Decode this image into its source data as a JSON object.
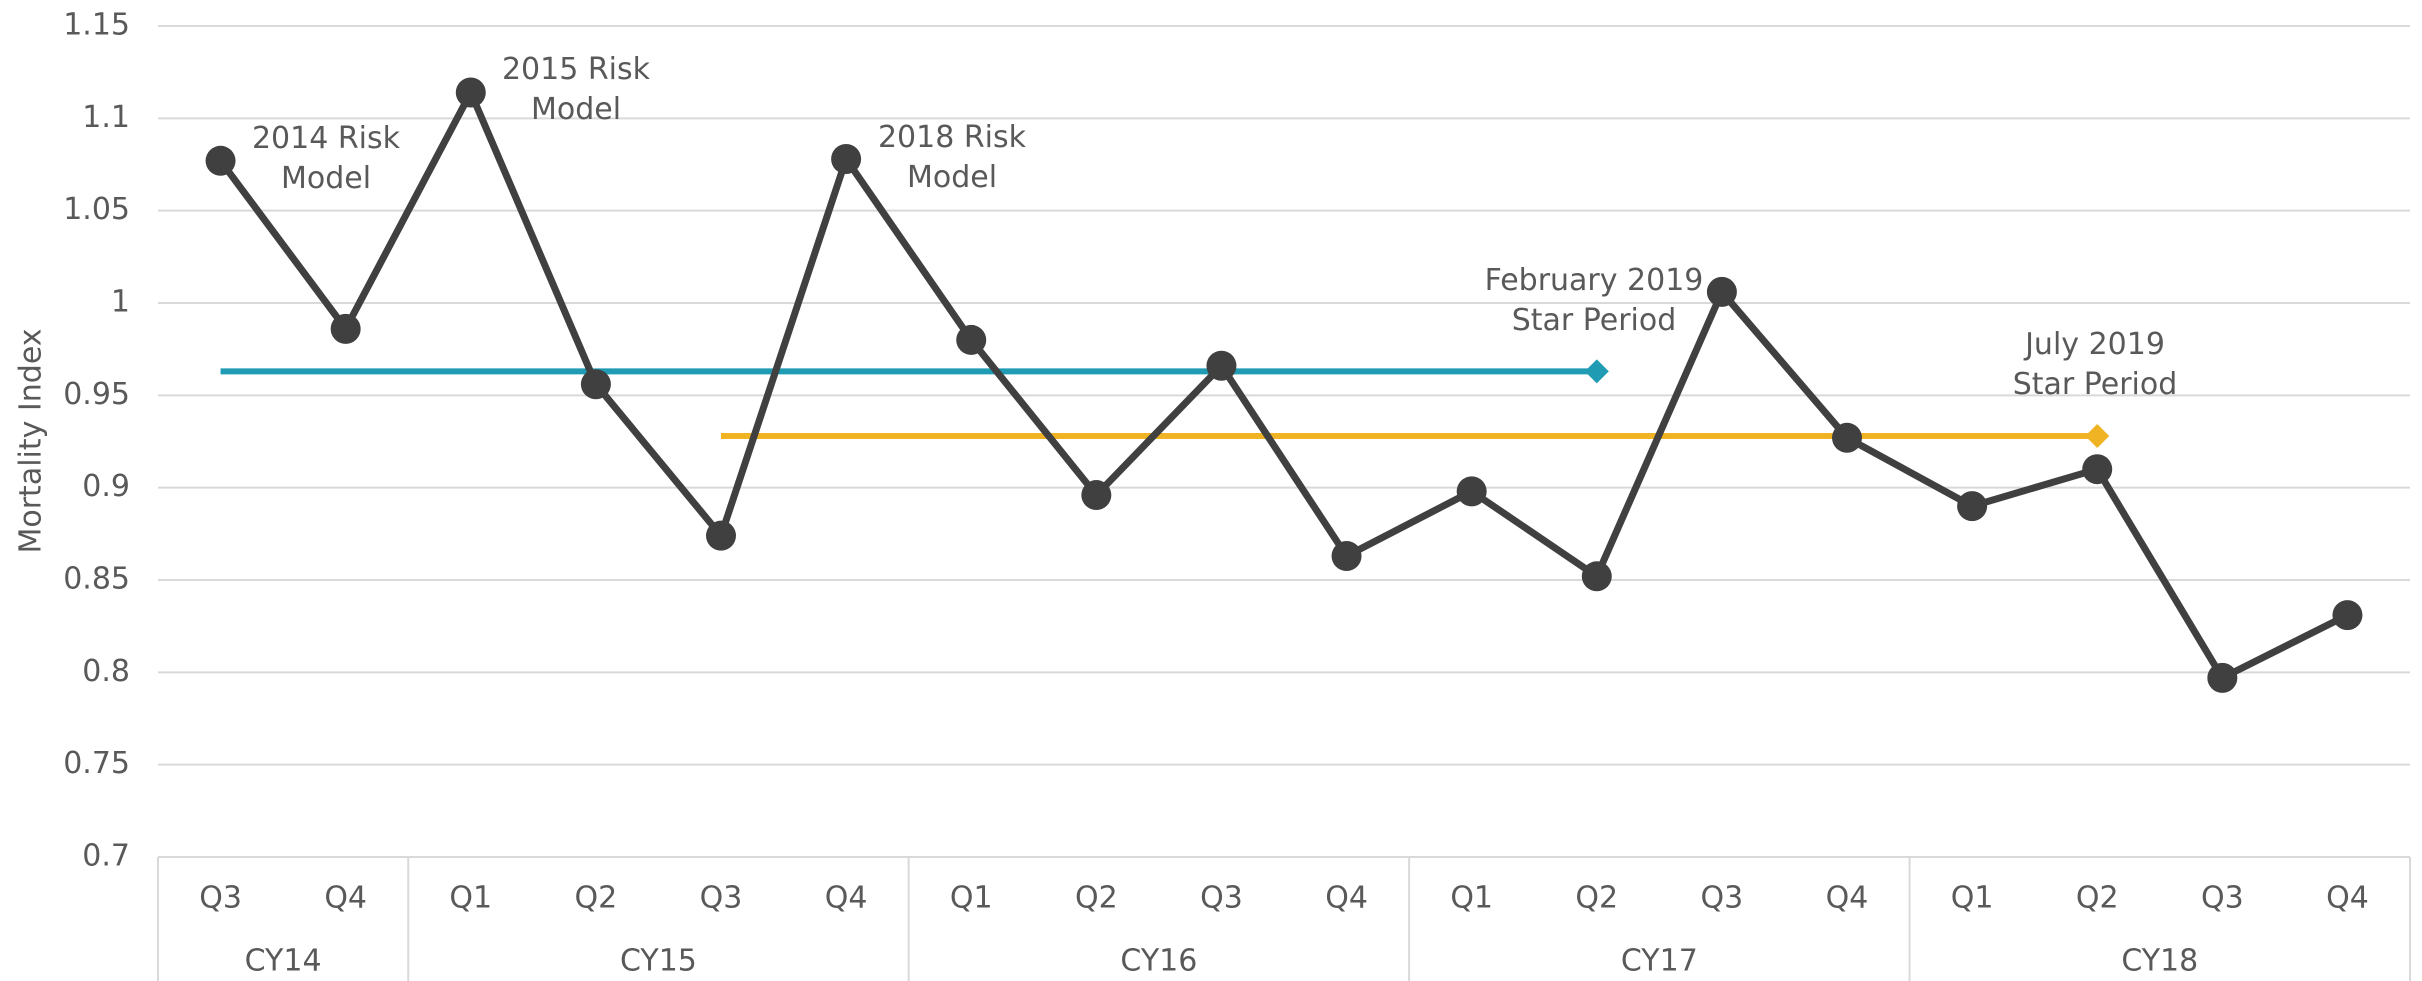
{
  "chart_data": {
    "type": "line",
    "y_axis_label": "Mortality Index",
    "groups": [
      {
        "label": "CY14",
        "categories": [
          "Q3",
          "Q4"
        ]
      },
      {
        "label": "CY15",
        "categories": [
          "Q1",
          "Q2",
          "Q3",
          "Q4"
        ]
      },
      {
        "label": "CY16",
        "categories": [
          "Q1",
          "Q2",
          "Q3",
          "Q4"
        ]
      },
      {
        "label": "CY17",
        "categories": [
          "Q1",
          "Q2",
          "Q3",
          "Q4"
        ]
      },
      {
        "label": "CY18",
        "categories": [
          "Q1",
          "Q2",
          "Q3",
          "Q4"
        ]
      }
    ],
    "series": [
      {
        "color": "#404040",
        "marker": "circle",
        "values": [
          1.077,
          0.986,
          1.114,
          0.956,
          0.874,
          1.078,
          0.98,
          0.896,
          0.966,
          0.863,
          0.898,
          0.852,
          1.006,
          0.927,
          0.89,
          0.91,
          0.797,
          0.831
        ]
      },
      {
        "color": "#1f9bb4",
        "marker": "end-diamond",
        "values": [
          0.963,
          0.963,
          0.963,
          0.963,
          0.963,
          0.963,
          0.963,
          0.963,
          0.963,
          0.963,
          0.963,
          0.963,
          null,
          null,
          null,
          null,
          null,
          null
        ]
      },
      {
        "color": "#f0b323",
        "marker": "end-diamond",
        "values": [
          null,
          null,
          null,
          null,
          0.928,
          0.928,
          0.928,
          0.928,
          0.928,
          0.928,
          0.928,
          0.928,
          0.928,
          0.928,
          0.928,
          0.928,
          null,
          null
        ]
      }
    ],
    "annotations": [
      {
        "lines": [
          "2014 Risk",
          "Model"
        ]
      },
      {
        "lines": [
          "2015 Risk",
          "Model"
        ]
      },
      {
        "lines": [
          "2018 Risk",
          "Model"
        ]
      },
      {
        "lines": [
          "February 2019",
          "Star Period"
        ]
      },
      {
        "lines": [
          "July 2019",
          "Star Period"
        ]
      }
    ],
    "ylim": [
      0.7,
      1.15
    ],
    "yticks": [
      0.7,
      0.75,
      0.8,
      0.85,
      0.9,
      0.95,
      1,
      1.05,
      1.1,
      1.15
    ],
    "grid": true
  }
}
